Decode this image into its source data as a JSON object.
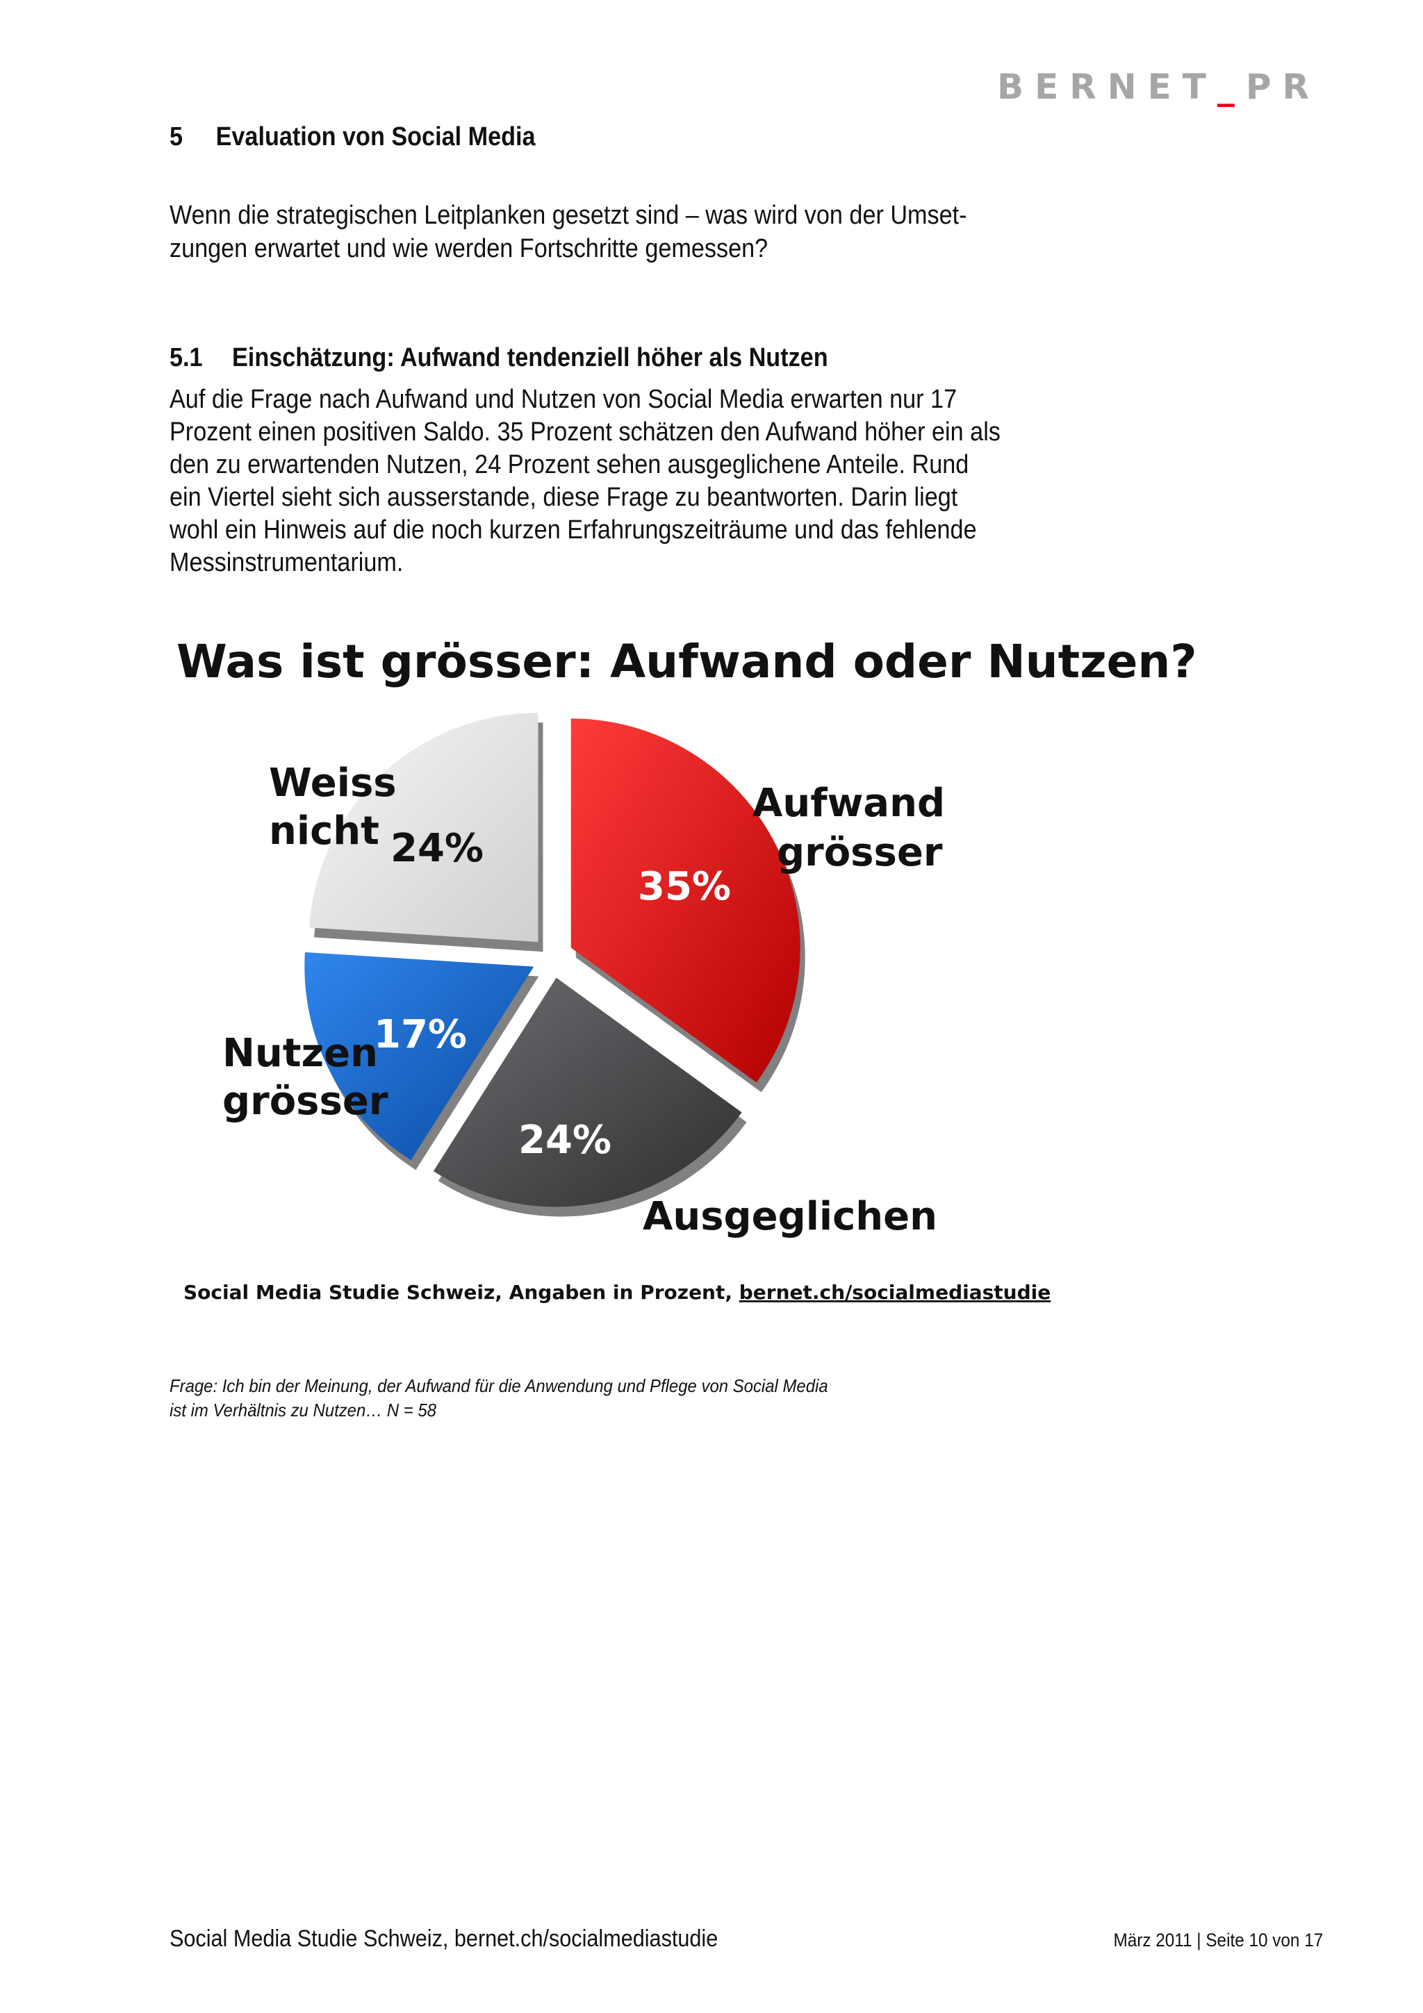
{
  "header": {
    "logo_main": "BERNET",
    "logo_sep": "_",
    "logo_tail": "PR"
  },
  "section": {
    "number": "5",
    "title": "Evaluation von Social Media",
    "intro_line1": "Wenn die strategischen Leitplanken gesetzt sind – was wird von der Umset-",
    "intro_line2": "zungen erwartet und wie werden Fortschritte gemessen?"
  },
  "subsection": {
    "number": "5.1",
    "title": "Einschätzung: Aufwand tendenziell höher als Nutzen",
    "lines": [
      "Auf die Frage nach Aufwand und Nutzen von Social Media erwarten nur 17",
      "Prozent einen positiven Saldo. 35 Prozent schätzen den Aufwand höher ein als",
      "den zu erwartenden Nutzen, 24 Prozent sehen ausgeglichene Anteile. Rund",
      "ein Viertel sieht sich ausserstande, diese Frage zu beantworten. Darin liegt",
      "wohl ein Hinweis auf die noch kurzen Erfahrungszeiträume und das fehlende",
      "Messinstrumentarium."
    ]
  },
  "chart_data": {
    "type": "pie",
    "title": "Was ist grösser: Aufwand oder Nutzen?",
    "source_text": "Social Media Studie Schweiz, Angaben in Prozent, ",
    "source_link": "bernet.ch/socialmediastudie",
    "slices": [
      {
        "label_line1": "Aufwand",
        "label_line2": "grösser",
        "value": 35,
        "display": "35%",
        "color": "#e30613",
        "value_color": "#ffffff"
      },
      {
        "label_line1": "Ausgeglichen",
        "label_line2": "",
        "value": 24,
        "display": "24%",
        "color": "#4d4d50",
        "value_color": "#ffffff"
      },
      {
        "label_line1": "Nutzen",
        "label_line2": "grösser",
        "value": 17,
        "display": "17%",
        "color": "#1565c9",
        "value_color": "#ffffff"
      },
      {
        "label_line1": "Weiss",
        "label_line2": "nicht",
        "value": 24,
        "display": "24%",
        "color": "#e8e8e8",
        "value_color": "#111111"
      }
    ]
  },
  "question": {
    "line1": "Frage: Ich bin der Meinung, der Aufwand für die Anwendung und Pflege von Social Media",
    "line2": "ist im Verhältnis zu Nutzen… N = 58"
  },
  "footer": {
    "left": "Social Media Studie Schweiz, bernet.ch/socialmediastudie",
    "right": "März 2011  | Seite 10 von 17"
  }
}
